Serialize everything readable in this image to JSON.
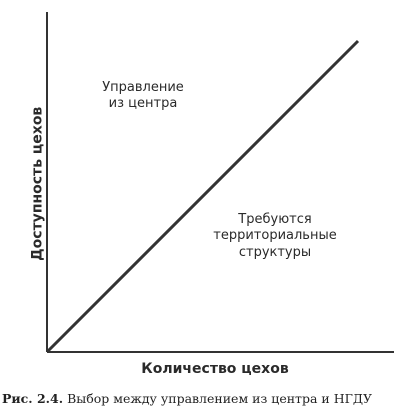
{
  "diagram": {
    "y_axis_title": "Доступность цехов",
    "x_axis_title": "Количество цехов",
    "region_above_line": "Управление\nиз центра",
    "region_below_line": "Требуются\nтерриториальные\nструктуры",
    "axis_color": "#333333",
    "diagonal_color": "#333333"
  },
  "caption": {
    "figure_number": "Рис. 2.4.",
    "text": "Выбор между управлением из центра и НГДУ"
  }
}
